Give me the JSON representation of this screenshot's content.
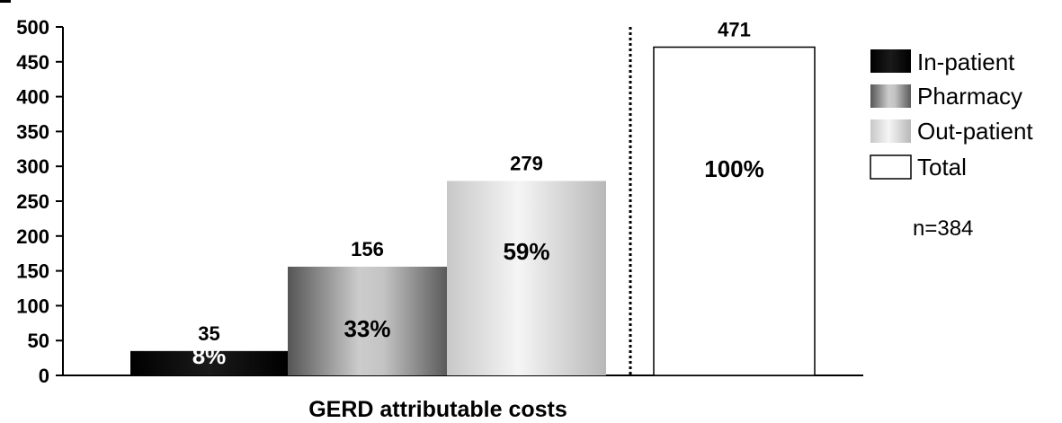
{
  "chart_data": {
    "type": "bar",
    "xlabel": "GERD attributable costs",
    "ylim": [
      0,
      500
    ],
    "yticks": [
      0,
      50,
      100,
      150,
      200,
      250,
      300,
      350,
      400,
      450,
      500
    ],
    "bars": [
      {
        "legend": "In-patient",
        "value": 35,
        "value_label": "35",
        "pct_label": "8%",
        "fill": "inpatient"
      },
      {
        "legend": "Pharmacy",
        "value": 156,
        "value_label": "156",
        "pct_label": "33%",
        "fill": "pharmacy"
      },
      {
        "legend": "Out-patient",
        "value": 279,
        "value_label": "279",
        "pct_label": "59%",
        "fill": "outpatient"
      },
      {
        "legend": "Total",
        "value": 471,
        "value_label": "471",
        "pct_label": "100%",
        "fill": "total"
      }
    ],
    "legend": {
      "position": "right",
      "items": [
        "In-patient",
        "Pharmacy",
        "Out-patient",
        "Total"
      ]
    },
    "note": "n=384",
    "separator": "dotted-vertical-line-before-total",
    "colors": {
      "inpatient": "#000000",
      "pharmacy_dark": "#555555",
      "pharmacy_light": "#cccccc",
      "outpatient_light": "#f2f2f2",
      "outpatient_dark": "#bdbdbd",
      "total": "#ffffff",
      "axis": "#000000"
    }
  }
}
